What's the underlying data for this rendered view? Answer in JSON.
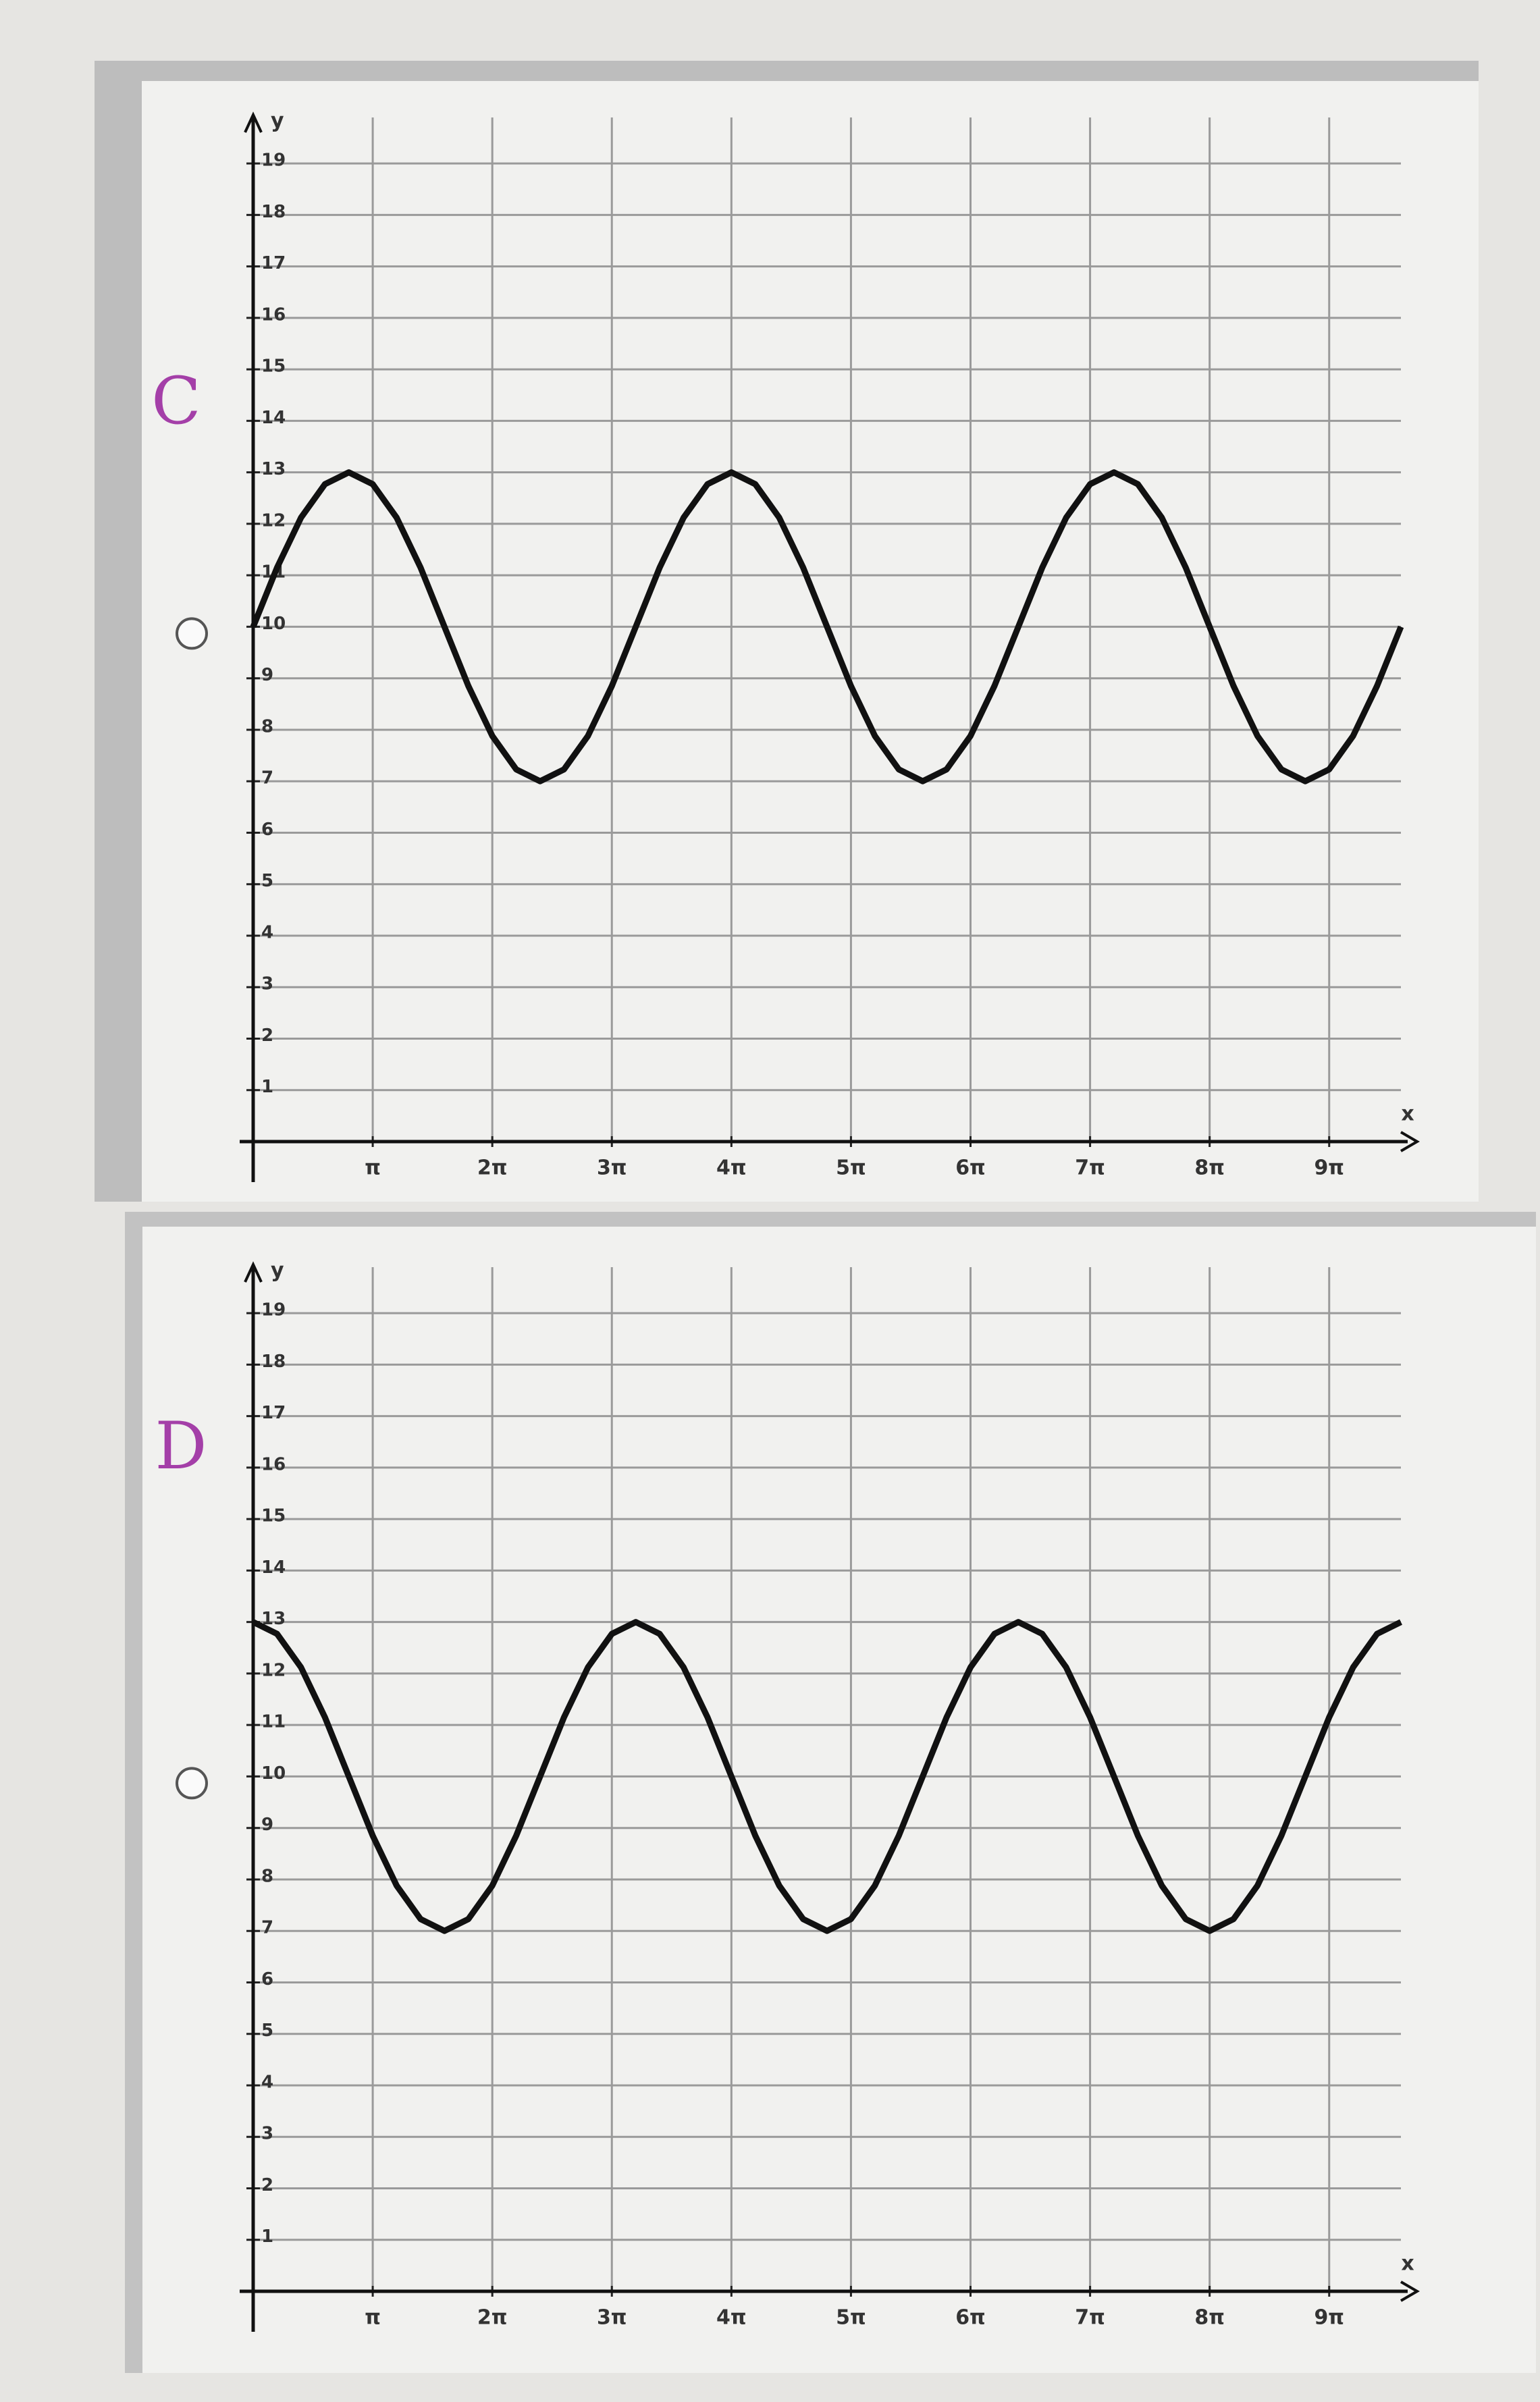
{
  "chart_data": [
    {
      "type": "line",
      "annotation": "C",
      "x_label": "x",
      "y_label": "y",
      "x": [
        0,
        0.2,
        0.4,
        0.6,
        0.8,
        1,
        1.2,
        1.4,
        1.6,
        1.8,
        2,
        2.2,
        2.4,
        2.6,
        2.8,
        3,
        3.2,
        3.4,
        3.6,
        3.8,
        4,
        4.2,
        4.4,
        4.6,
        4.8,
        5,
        5.2,
        5.4,
        5.6,
        5.8,
        6,
        6.2,
        6.4,
        6.6,
        6.8,
        7,
        7.2,
        7.4,
        7.6,
        7.8,
        8,
        8.2,
        8.4,
        8.6,
        8.8,
        9,
        9.2,
        9.4,
        9.6
      ],
      "series": [
        {
          "color": "#111111",
          "values": [
            10,
            11.15,
            12.12,
            12.77,
            13,
            12.77,
            12.12,
            11.15,
            10,
            8.85,
            7.88,
            7.23,
            7,
            7.23,
            7.88,
            8.85,
            10,
            11.15,
            12.12,
            12.77,
            13,
            12.77,
            12.12,
            11.15,
            10,
            8.85,
            7.88,
            7.23,
            7,
            7.23,
            7.88,
            8.85,
            10,
            11.15,
            12.12,
            12.77,
            13,
            12.77,
            12.12,
            11.15,
            10,
            8.85,
            7.88,
            7.23,
            7,
            7.23,
            7.88,
            8.85,
            10
          ]
        }
      ],
      "xlim": [
        0,
        9.6
      ],
      "ylim": [
        0,
        19.5
      ],
      "xticks": [
        {
          "value": 1,
          "label": "π"
        },
        {
          "value": 2,
          "label": "2π"
        },
        {
          "value": 3,
          "label": "3π"
        },
        {
          "value": 4,
          "label": "4π"
        },
        {
          "value": 5,
          "label": "5π"
        },
        {
          "value": 6,
          "label": "6π"
        },
        {
          "value": 7,
          "label": "7π"
        },
        {
          "value": 8,
          "label": "8π"
        },
        {
          "value": 9,
          "label": "9π"
        }
      ],
      "yticks": [
        1,
        2,
        3,
        4,
        5,
        6,
        7,
        8,
        9,
        10,
        11,
        12,
        13,
        14,
        15,
        16,
        17,
        18,
        19
      ],
      "grid": true
    },
    {
      "type": "line",
      "annotation": "D",
      "x_label": "x",
      "y_label": "y",
      "x": [
        0,
        0.2,
        0.4,
        0.6,
        0.8,
        1,
        1.2,
        1.4,
        1.6,
        1.8,
        2,
        2.2,
        2.4,
        2.6,
        2.8,
        3,
        3.2,
        3.4,
        3.6,
        3.8,
        4,
        4.2,
        4.4,
        4.6,
        4.8,
        5,
        5.2,
        5.4,
        5.6,
        5.8,
        6,
        6.2,
        6.4,
        6.6,
        6.8,
        7,
        7.2,
        7.4,
        7.6,
        7.8,
        8,
        8.2,
        8.4,
        8.6,
        8.8,
        9,
        9.2,
        9.4,
        9.6
      ],
      "series": [
        {
          "color": "#111111",
          "values": [
            13,
            12.77,
            12.12,
            11.15,
            10,
            8.85,
            7.88,
            7.23,
            7,
            7.23,
            7.88,
            8.85,
            10,
            11.15,
            12.12,
            12.77,
            13,
            12.77,
            12.12,
            11.15,
            10,
            8.85,
            7.88,
            7.23,
            7,
            7.23,
            7.88,
            8.85,
            10,
            11.15,
            12.12,
            12.77,
            13,
            12.77,
            12.12,
            11.15,
            10,
            8.85,
            7.88,
            7.23,
            7,
            7.23,
            7.88,
            8.85,
            10,
            11.15,
            12.12,
            12.77,
            13
          ]
        }
      ],
      "xlim": [
        0,
        9.6
      ],
      "ylim": [
        0,
        19.5
      ],
      "xticks": [
        {
          "value": 1,
          "label": "π"
        },
        {
          "value": 2,
          "label": "2π"
        },
        {
          "value": 3,
          "label": "3π"
        },
        {
          "value": 4,
          "label": "4π"
        },
        {
          "value": 5,
          "label": "5π"
        },
        {
          "value": 6,
          "label": "6π"
        },
        {
          "value": 7,
          "label": "7π"
        },
        {
          "value": 8,
          "label": "8π"
        },
        {
          "value": 9,
          "label": "9π"
        }
      ],
      "yticks": [
        1,
        2,
        3,
        4,
        5,
        6,
        7,
        8,
        9,
        10,
        11,
        12,
        13,
        14,
        15,
        16,
        17,
        18,
        19
      ],
      "grid": true
    }
  ]
}
